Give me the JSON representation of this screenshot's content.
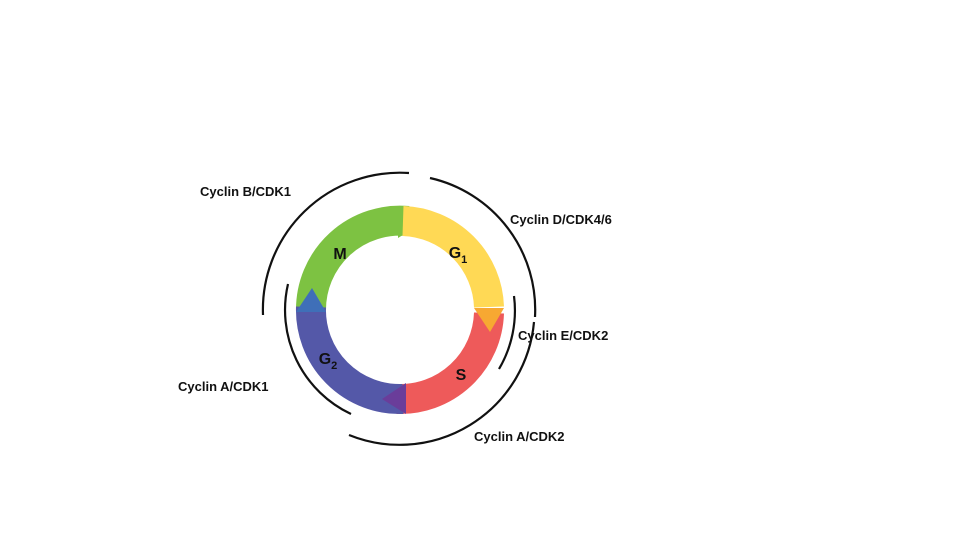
{
  "phases": [
    {
      "label": "M"
    },
    {
      "label": "G",
      "subscript": "1"
    },
    {
      "label": "S"
    },
    {
      "label": "G",
      "subscript": "2"
    }
  ],
  "cyclins": [
    {
      "label": "Cyclin B/CDK1"
    },
    {
      "label": "Cyclin D/CDK4/6"
    },
    {
      "label": "Cyclin E/CDK2"
    },
    {
      "label": "Cyclin A/CDK2"
    },
    {
      "label": "Cyclin A/CDK1"
    }
  ]
}
